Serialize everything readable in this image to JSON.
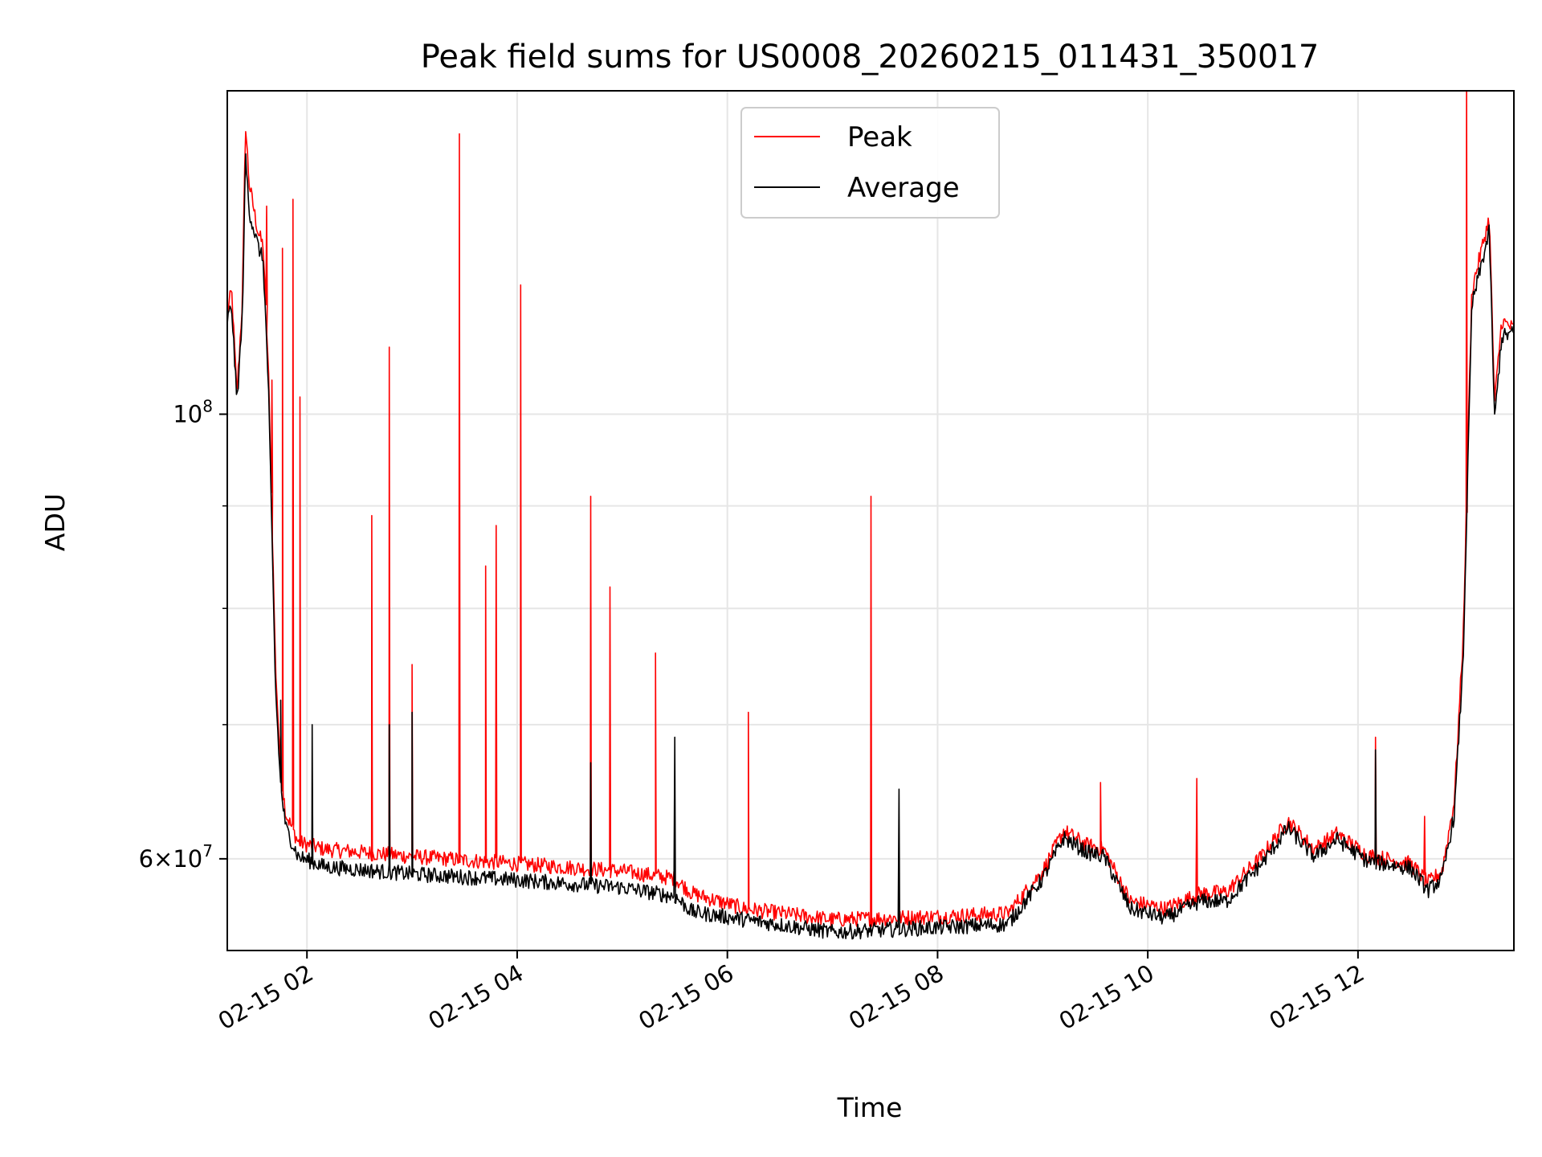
{
  "chart_data": {
    "type": "line",
    "title": "Peak field sums for US0008_20260215_011431_350017",
    "xlabel": "Time",
    "ylabel": "ADU",
    "x_type": "datetime",
    "xlim": [
      "2026-02-15T01:14:31",
      "2026-02-15T13:29:00"
    ],
    "ylim": [
      54000000,
      145000000
    ],
    "y_scale": "log",
    "grid": true,
    "legend_position": "top-center",
    "x_ticks": [
      {
        "value": "2026-02-15T02:00:00",
        "label": "02-15 02"
      },
      {
        "value": "2026-02-15T04:00:00",
        "label": "02-15 04"
      },
      {
        "value": "2026-02-15T06:00:00",
        "label": "02-15 06"
      },
      {
        "value": "2026-02-15T08:00:00",
        "label": "02-15 08"
      },
      {
        "value": "2026-02-15T10:00:00",
        "label": "02-15 10"
      },
      {
        "value": "2026-02-15T12:00:00",
        "label": "02-15 12"
      }
    ],
    "y_major_ticks": [
      {
        "value": 60000000,
        "mantissa": "6",
        "base": "10",
        "exp": "7"
      },
      {
        "value": 100000000,
        "mantissa": "",
        "base": "10",
        "exp": "8"
      }
    ],
    "y_minor_ticks": [
      70000000,
      80000000,
      90000000
    ],
    "series": [
      {
        "name": "Peak",
        "color": "#ff0000",
        "x": [
          "2026-02-15T01:14:31",
          "2026-02-15T01:17:00",
          "2026-02-15T01:20:00",
          "2026-02-15T01:23:00",
          "2026-02-15T01:25:00",
          "2026-02-15T01:27:00",
          "2026-02-15T01:32:00",
          "2026-02-15T01:35:00",
          "2026-02-15T01:38:00",
          "2026-02-15T01:42:00",
          "2026-02-15T01:45:00",
          "2026-02-15T01:48:00",
          "2026-02-15T01:55:00",
          "2026-02-15T02:10:00",
          "2026-02-15T03:00:00",
          "2026-02-15T04:00:00",
          "2026-02-15T05:00:00",
          "2026-02-15T05:30:00",
          "2026-02-15T05:40:00",
          "2026-02-15T06:10:00",
          "2026-02-15T07:00:00",
          "2026-02-15T08:00:00",
          "2026-02-15T08:40:00",
          "2026-02-15T09:00:00",
          "2026-02-15T09:12:00",
          "2026-02-15T09:25:00",
          "2026-02-15T09:35:00",
          "2026-02-15T09:50:00",
          "2026-02-15T10:10:00",
          "2026-02-15T10:30:00",
          "2026-02-15T10:45:00",
          "2026-02-15T11:05:00",
          "2026-02-15T11:20:00",
          "2026-02-15T11:35:00",
          "2026-02-15T11:48:00",
          "2026-02-15T12:05:00",
          "2026-02-15T12:30:00",
          "2026-02-15T12:40:00",
          "2026-02-15T12:48:00",
          "2026-02-15T12:55:00",
          "2026-02-15T13:00:00",
          "2026-02-15T13:05:00",
          "2026-02-15T13:12:00",
          "2026-02-15T13:15:00",
          "2026-02-15T13:18:00",
          "2026-02-15T13:22:00",
          "2026-02-15T13:29:00"
        ],
        "y": [
          112000000,
          115000000,
          102000000,
          113000000,
          139000000,
          130000000,
          123000000,
          121000000,
          105000000,
          75000000,
          66000000,
          63000000,
          61000000,
          60500000,
          60000000,
          59500000,
          59000000,
          58500000,
          57500000,
          56500000,
          55800000,
          56000000,
          56200000,
          59000000,
          61800000,
          60800000,
          60500000,
          57000000,
          56500000,
          57500000,
          57600000,
          60000000,
          62500000,
          60500000,
          61600000,
          60100000,
          59500000,
          58200000,
          59000000,
          64000000,
          77000000,
          115000000,
          122000000,
          125000000,
          101000000,
          111000000,
          110000000
        ],
        "spikes": [
          {
            "x": "2026-02-15T01:37:00",
            "y": 127000000
          },
          {
            "x": "2026-02-15T01:40:00",
            "y": 104000000
          },
          {
            "x": "2026-02-15T01:46:00",
            "y": 121000000
          },
          {
            "x": "2026-02-15T01:52:00",
            "y": 128000000
          },
          {
            "x": "2026-02-15T01:56:00",
            "y": 102000000
          },
          {
            "x": "2026-02-15T02:37:00",
            "y": 89000000
          },
          {
            "x": "2026-02-15T02:47:00",
            "y": 108000000
          },
          {
            "x": "2026-02-15T03:00:00",
            "y": 75000000
          },
          {
            "x": "2026-02-15T03:27:00",
            "y": 138000000
          },
          {
            "x": "2026-02-15T03:42:00",
            "y": 84000000
          },
          {
            "x": "2026-02-15T03:48:00",
            "y": 88000000
          },
          {
            "x": "2026-02-15T04:02:00",
            "y": 116000000
          },
          {
            "x": "2026-02-15T04:42:00",
            "y": 91000000
          },
          {
            "x": "2026-02-15T04:53:00",
            "y": 82000000
          },
          {
            "x": "2026-02-15T05:19:00",
            "y": 76000000
          },
          {
            "x": "2026-02-15T06:12:00",
            "y": 71000000
          },
          {
            "x": "2026-02-15T07:22:00",
            "y": 91000000
          },
          {
            "x": "2026-02-15T09:33:00",
            "y": 65500000
          },
          {
            "x": "2026-02-15T10:28:00",
            "y": 65800000
          },
          {
            "x": "2026-02-15T12:10:00",
            "y": 69000000
          },
          {
            "x": "2026-02-15T12:38:00",
            "y": 63000000
          },
          {
            "x": "2026-02-15T13:02:00",
            "y": 148000000
          }
        ]
      },
      {
        "name": "Average",
        "color": "#000000",
        "x": [
          "2026-02-15T01:14:31",
          "2026-02-15T01:17:00",
          "2026-02-15T01:20:00",
          "2026-02-15T01:23:00",
          "2026-02-15T01:25:00",
          "2026-02-15T01:27:00",
          "2026-02-15T01:32:00",
          "2026-02-15T01:35:00",
          "2026-02-15T01:38:00",
          "2026-02-15T01:42:00",
          "2026-02-15T01:45:00",
          "2026-02-15T01:48:00",
          "2026-02-15T01:55:00",
          "2026-02-15T02:10:00",
          "2026-02-15T03:00:00",
          "2026-02-15T04:00:00",
          "2026-02-15T05:00:00",
          "2026-02-15T05:30:00",
          "2026-02-15T05:40:00",
          "2026-02-15T06:10:00",
          "2026-02-15T07:00:00",
          "2026-02-15T08:00:00",
          "2026-02-15T08:40:00",
          "2026-02-15T09:00:00",
          "2026-02-15T09:12:00",
          "2026-02-15T09:25:00",
          "2026-02-15T09:35:00",
          "2026-02-15T09:50:00",
          "2026-02-15T10:10:00",
          "2026-02-15T10:30:00",
          "2026-02-15T10:45:00",
          "2026-02-15T11:05:00",
          "2026-02-15T11:20:00",
          "2026-02-15T11:35:00",
          "2026-02-15T11:48:00",
          "2026-02-15T12:05:00",
          "2026-02-15T12:30:00",
          "2026-02-15T12:40:00",
          "2026-02-15T12:48:00",
          "2026-02-15T12:55:00",
          "2026-02-15T13:00:00",
          "2026-02-15T13:05:00",
          "2026-02-15T13:12:00",
          "2026-02-15T13:15:00",
          "2026-02-15T13:18:00",
          "2026-02-15T13:22:00",
          "2026-02-15T13:29:00"
        ],
        "y": [
          111000000,
          113000000,
          101000000,
          111000000,
          134000000,
          126000000,
          121000000,
          119000000,
          103000000,
          73000000,
          65000000,
          62000000,
          60000000,
          59300000,
          58800000,
          58400000,
          57900000,
          57300000,
          56300000,
          55800000,
          55000000,
          55300000,
          55500000,
          58500000,
          61300000,
          60300000,
          60000000,
          56500000,
          55900000,
          57000000,
          57000000,
          59500000,
          62000000,
          60000000,
          61200000,
          59700000,
          59200000,
          57700000,
          58500000,
          63000000,
          75000000,
          113000000,
          120000000,
          123000000,
          99000000,
          109000000,
          109500000
        ],
        "spikes": [
          {
            "x": "2026-02-15T01:45:00",
            "y": 72000000
          },
          {
            "x": "2026-02-15T02:03:00",
            "y": 70000000
          },
          {
            "x": "2026-02-15T02:47:00",
            "y": 70000000
          },
          {
            "x": "2026-02-15T03:00:00",
            "y": 71000000
          },
          {
            "x": "2026-02-15T04:42:00",
            "y": 67000000
          },
          {
            "x": "2026-02-15T05:30:00",
            "y": 69000000
          },
          {
            "x": "2026-02-15T07:38:00",
            "y": 65000000
          },
          {
            "x": "2026-02-15T12:10:00",
            "y": 68000000
          }
        ]
      }
    ]
  }
}
